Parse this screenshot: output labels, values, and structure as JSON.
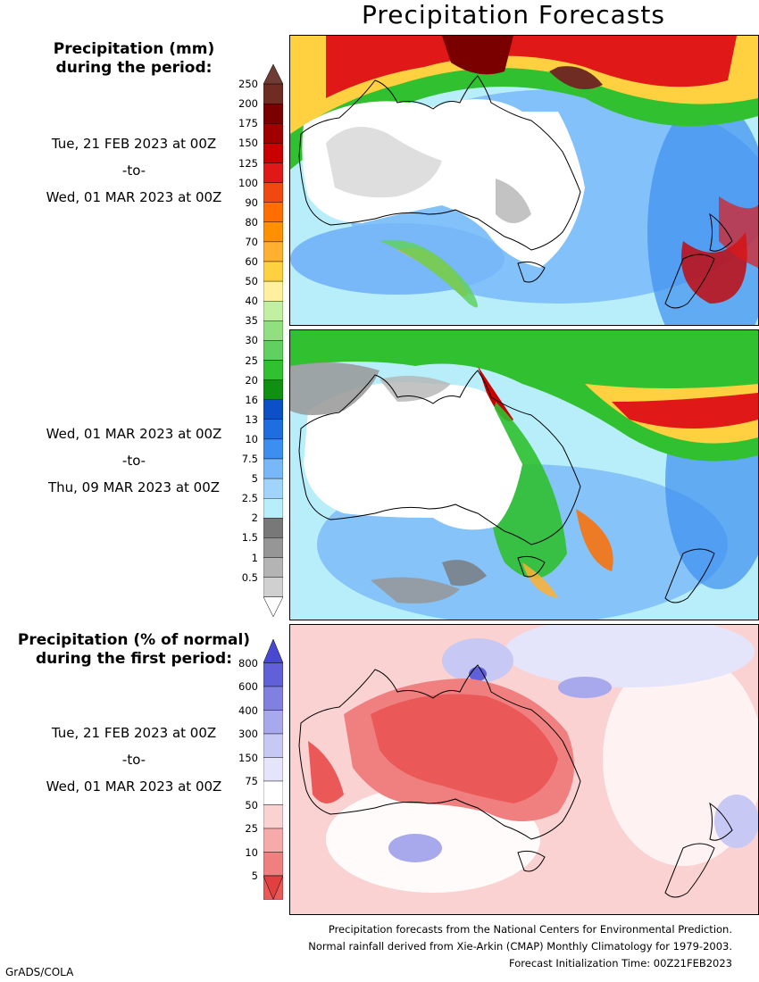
{
  "title": "Precipitation Forecasts",
  "amount_section": {
    "title_line1": "Precipitation (mm)",
    "title_line2": "during the period:",
    "periods": [
      {
        "start": "Tue, 21 FEB 2023 at 00Z",
        "sep": "-to-",
        "end": "Wed, 01 MAR 2023 at 00Z"
      },
      {
        "start": "Wed, 01 MAR 2023 at 00Z",
        "sep": "-to-",
        "end": "Thu, 09 MAR 2023 at 00Z"
      }
    ],
    "legend": {
      "labels": [
        "250",
        "200",
        "175",
        "150",
        "125",
        "100",
        "90",
        "80",
        "70",
        "60",
        "50",
        "40",
        "35",
        "30",
        "25",
        "20",
        "16",
        "13",
        "10",
        "7.5",
        "5",
        "2.5",
        "2",
        "1.5",
        "1",
        "0.5"
      ],
      "colors": [
        "#6e2c22",
        "#7a0000",
        "#a00000",
        "#c80000",
        "#e01818",
        "#f04810",
        "#ff6e00",
        "#ff9000",
        "#ffb030",
        "#ffd040",
        "#fff0a0",
        "#c0f0a0",
        "#90e080",
        "#60d060",
        "#30c030",
        "#109010",
        "#0c50c8",
        "#1e6ee0",
        "#3c8ef0",
        "#78b8f8",
        "#a0d4fa",
        "#b8eefa",
        "#787878",
        "#969696",
        "#b4b4b4",
        "#d0d0d0"
      ],
      "top_arrow_color": "#6e3c32"
    }
  },
  "percent_section": {
    "title_line1": "Precipitation (% of normal)",
    "title_line2": "during the first period:",
    "period": {
      "start": "Tue, 21 FEB 2023 at 00Z",
      "sep": "-to-",
      "end": "Wed, 01 MAR 2023 at 00Z"
    },
    "legend": {
      "labels": [
        "800",
        "600",
        "400",
        "300",
        "150",
        "75",
        "50",
        "25",
        "10",
        "5"
      ],
      "colors": [
        "#6060d8",
        "#8080e0",
        "#a8a8ec",
        "#c8c8f4",
        "#e4e4fa",
        "#ffffff",
        "#fad2d2",
        "#f6aaaa",
        "#f08080",
        "#ea5858"
      ],
      "top_arrow_color": "#4848d0",
      "bottom_arrow_color": "#e04040"
    }
  },
  "footer": {
    "line1": "Precipitation forecasts from the National Centers for Environmental Prediction.",
    "line2": "Normal rainfall derived from Xie-Arkin (CMAP) Monthly Climatology for 1979-2003.",
    "line3": "Forecast Initialization Time: 00Z21FEB2023"
  },
  "credit": "GrADS/COLA"
}
